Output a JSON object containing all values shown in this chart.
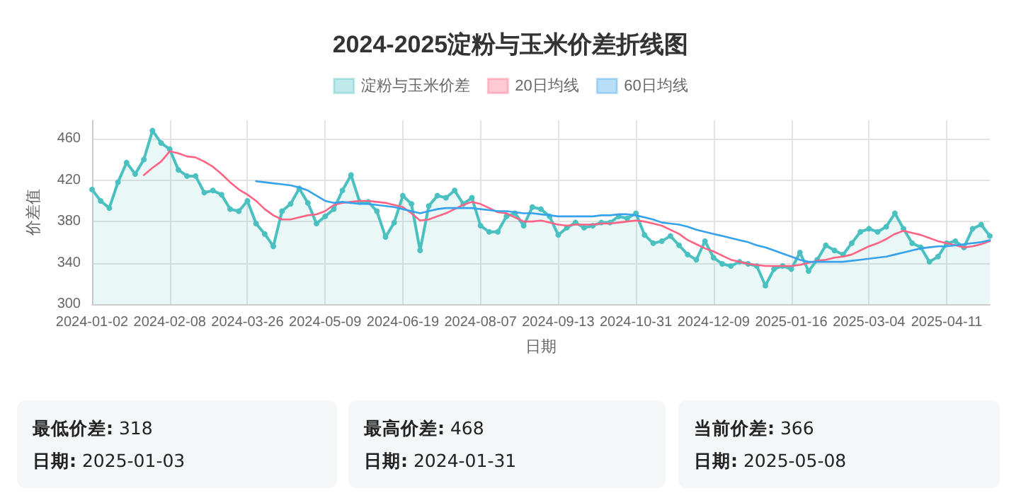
{
  "chart_data": {
    "type": "line",
    "title": "2024-2025淀粉与玉米价差折线图",
    "xlabel": "日期",
    "ylabel": "价差值",
    "categories": [
      "2024-01-02",
      null,
      null,
      null,
      null,
      null,
      null,
      null,
      null,
      "2024-02-08",
      null,
      null,
      null,
      null,
      null,
      null,
      null,
      null,
      "2024-03-26",
      null,
      null,
      null,
      null,
      null,
      null,
      null,
      null,
      "2024-05-09",
      null,
      null,
      null,
      null,
      null,
      null,
      null,
      null,
      "2024-06-19",
      null,
      null,
      null,
      null,
      null,
      null,
      null,
      null,
      "2024-08-07",
      null,
      null,
      null,
      null,
      null,
      null,
      null,
      null,
      "2024-09-13",
      null,
      null,
      null,
      null,
      null,
      null,
      null,
      null,
      "2024-10-31",
      null,
      null,
      null,
      null,
      null,
      null,
      null,
      null,
      "2024-12-09",
      null,
      null,
      null,
      null,
      null,
      null,
      null,
      null,
      "2025-01-16",
      null,
      null,
      null,
      null,
      null,
      null,
      null,
      null,
      "2025-03-04",
      null,
      null,
      null,
      null,
      null,
      null,
      null,
      null,
      "2025-04-11",
      null,
      null,
      null,
      null,
      null
    ],
    "series": [
      {
        "name": "淀粉与玉米价差",
        "type": "area",
        "color": "#4bc0c0",
        "marker": "circle",
        "values": [
          411,
          400,
          393,
          418,
          437,
          426,
          440,
          468,
          456,
          450,
          430,
          424,
          424,
          408,
          410,
          406,
          392,
          390,
          400,
          378,
          368,
          356,
          390,
          397,
          412,
          398,
          378,
          385,
          392,
          410,
          425,
          399,
          399,
          390,
          365,
          379,
          405,
          397,
          352,
          395,
          405,
          403,
          410,
          397,
          403,
          376,
          370,
          370,
          385,
          388,
          376,
          394,
          392,
          385,
          367,
          374,
          379,
          374,
          376,
          379,
          379,
          385,
          383,
          388,
          367,
          359,
          361,
          366,
          357,
          348,
          343,
          361,
          345,
          339,
          337,
          341,
          339,
          337,
          318,
          334,
          337,
          334,
          350,
          332,
          343,
          357,
          352,
          348,
          359,
          370,
          373,
          370,
          375,
          388,
          373,
          359,
          355,
          341,
          346,
          359,
          361,
          355,
          373,
          377,
          366
        ]
      },
      {
        "name": "20日均线",
        "color": "#ff6384",
        "marker": "none",
        "values": [
          null,
          null,
          null,
          null,
          null,
          null,
          425,
          432,
          438,
          448,
          446,
          443,
          442,
          438,
          433,
          426,
          418,
          411,
          406,
          400,
          392,
          386,
          382,
          382,
          384,
          386,
          387,
          390,
          396,
          398,
          399,
          400,
          400,
          399,
          398,
          396,
          394,
          388,
          381,
          382,
          385,
          388,
          392,
          396,
          399,
          397,
          393,
          389,
          388,
          384,
          380,
          380,
          381,
          379,
          377,
          376,
          377,
          377,
          377,
          378,
          378,
          379,
          380,
          381,
          380,
          378,
          376,
          372,
          368,
          362,
          358,
          354,
          351,
          347,
          343,
          341,
          339,
          338,
          337,
          337,
          337,
          337,
          338,
          340,
          342,
          343,
          345,
          346,
          348,
          352,
          356,
          359,
          363,
          368,
          371,
          369,
          367,
          364,
          361,
          359,
          357,
          355,
          356,
          358,
          361
        ]
      },
      {
        "name": "60日均线",
        "color": "#36a2eb",
        "marker": "none",
        "values": [
          null,
          null,
          null,
          null,
          null,
          null,
          null,
          null,
          null,
          null,
          null,
          null,
          null,
          null,
          null,
          null,
          null,
          null,
          null,
          419,
          418,
          417,
          416,
          415,
          413,
          410,
          405,
          400,
          398,
          399,
          398,
          397,
          397,
          396,
          395,
          394,
          392,
          390,
          388,
          390,
          392,
          393,
          393,
          393,
          393,
          392,
          391,
          390,
          390,
          389,
          388,
          388,
          387,
          386,
          385,
          385,
          385,
          385,
          385,
          386,
          386,
          387,
          387,
          386,
          384,
          382,
          379,
          378,
          377,
          375,
          372,
          370,
          368,
          366,
          364,
          362,
          360,
          357,
          355,
          352,
          349,
          346,
          343,
          341,
          341,
          341,
          341,
          341,
          342,
          343,
          344,
          345,
          346,
          348,
          350,
          352,
          354,
          355,
          356,
          356,
          357,
          358,
          359,
          360,
          362
        ]
      }
    ],
    "ylim": [
      300,
      478
    ],
    "yticks": [
      300,
      340,
      380,
      420,
      460
    ],
    "grid": true,
    "legend": "top",
    "line_style": "solid",
    "annotations": [
      "最低价差: 318",
      "日期: 2025-01-03",
      "最高价差: 468",
      "日期: 2024-01-31",
      "当前价差: 366",
      "日期: 2025-05-08"
    ]
  }
}
